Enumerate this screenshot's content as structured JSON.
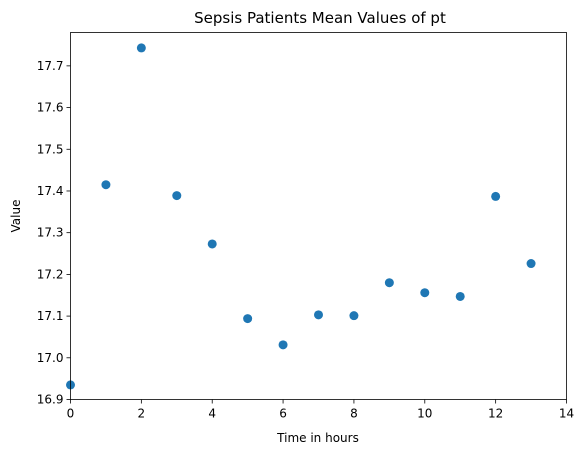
{
  "chart_data": {
    "type": "scatter",
    "title": "Sepsis Patients Mean Values of pt",
    "xlabel": "Time in hours",
    "ylabel": "Value",
    "xlim": [
      0,
      14
    ],
    "ylim": [
      16.9,
      17.78
    ],
    "xticks": [
      "0",
      "2",
      "4",
      "6",
      "8",
      "10",
      "12",
      "14"
    ],
    "yticks": [
      "16.9",
      "17.0",
      "17.1",
      "17.2",
      "17.3",
      "17.4",
      "17.5",
      "17.6",
      "17.7"
    ],
    "grid": false,
    "marker_color": "#1f77b4",
    "series": [
      {
        "x": [
          0,
          1,
          2,
          3,
          4,
          5,
          6,
          7,
          8,
          9,
          10,
          11,
          12,
          13
        ],
        "y": [
          16.935,
          17.415,
          17.743,
          17.389,
          17.273,
          17.094,
          17.031,
          17.103,
          17.101,
          17.18,
          17.156,
          17.147,
          17.387,
          17.226
        ]
      }
    ]
  }
}
